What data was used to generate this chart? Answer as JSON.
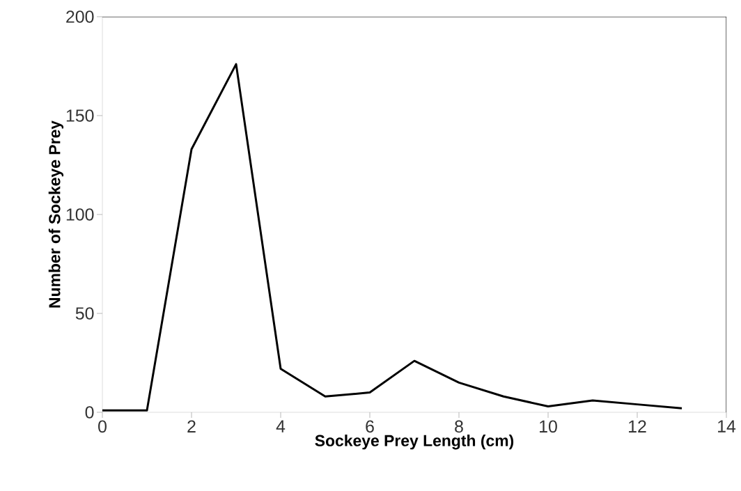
{
  "chart_data": {
    "type": "line",
    "xlabel": "Sockeye Prey Length (cm)",
    "ylabel": "Number of Sockeye Prey",
    "x": [
      0,
      1,
      2,
      3,
      4,
      5,
      6,
      7,
      8,
      9,
      10,
      11,
      12,
      13
    ],
    "series": [
      {
        "color": "#000000",
        "values": [
          1,
          1,
          133,
          176,
          22,
          8,
          10,
          26,
          15,
          8,
          3,
          6,
          4,
          2
        ]
      }
    ],
    "xlim": [
      0,
      14
    ],
    "ylim": [
      0,
      200
    ],
    "xticks": [
      0,
      2,
      4,
      6,
      8,
      10,
      12,
      14
    ],
    "yticks": [
      0,
      50,
      100,
      150,
      200
    ],
    "grid": false,
    "marker": "none",
    "line_style": "solid"
  }
}
